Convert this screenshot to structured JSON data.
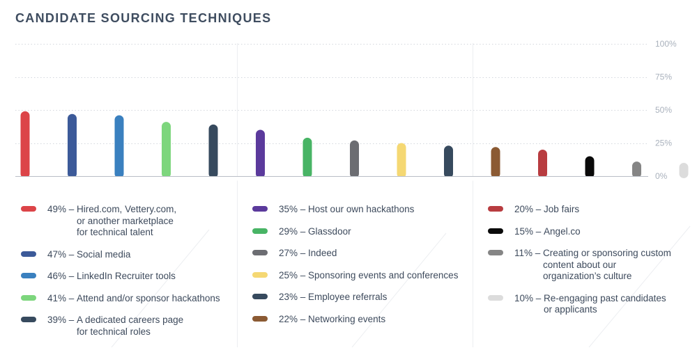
{
  "title": "CANDIDATE SOURCING TECHNIQUES",
  "chart_data": {
    "type": "bar",
    "unit": "%",
    "ylim": [
      0,
      100
    ],
    "yticks": [
      0,
      25,
      50,
      75,
      100
    ],
    "ytick_labels": [
      "0%",
      "25%",
      "50%",
      "75%",
      "100%"
    ],
    "grid": true,
    "legend_position": "bottom",
    "categories": [
      "Hired.com, Vettery.com,\nor another marketplace\nfor technical talent",
      "Social media",
      "LinkedIn Recruiter tools",
      "Attend and/or sponsor hackathons",
      "A dedicated careers page\nfor technical roles",
      "Host our own hackathons",
      "Glassdoor",
      "Indeed",
      "Sponsoring events and conferences",
      "Employee referrals",
      "Networking events",
      "Job fairs",
      "Angel.co",
      "Creating or sponsoring custom\ncontent about our\norganization’s culture",
      "Re-engaging past candidates\nor applicants"
    ],
    "values": [
      49,
      47,
      46,
      41,
      39,
      35,
      29,
      27,
      25,
      23,
      22,
      20,
      15,
      11,
      10
    ],
    "bar_order": [
      0,
      1,
      2,
      3,
      4,
      5,
      6,
      7,
      8,
      9,
      10,
      11,
      12,
      13,
      14
    ],
    "colors": [
      "#dc4448",
      "#3c5a99",
      "#3a80bf",
      "#7dd67d",
      "#374a5e",
      "#5b3a9c",
      "#48b465",
      "#6c6d72",
      "#f5d873",
      "#374a5e",
      "#8b5a33",
      "#b83c40",
      "#0a0a0a",
      "#858585",
      "#dcdcdc"
    ],
    "legend_columns": [
      [
        0,
        1,
        2,
        3,
        4
      ],
      [
        5,
        6,
        7,
        8,
        9,
        10
      ],
      [
        11,
        12,
        13,
        14
      ]
    ]
  }
}
